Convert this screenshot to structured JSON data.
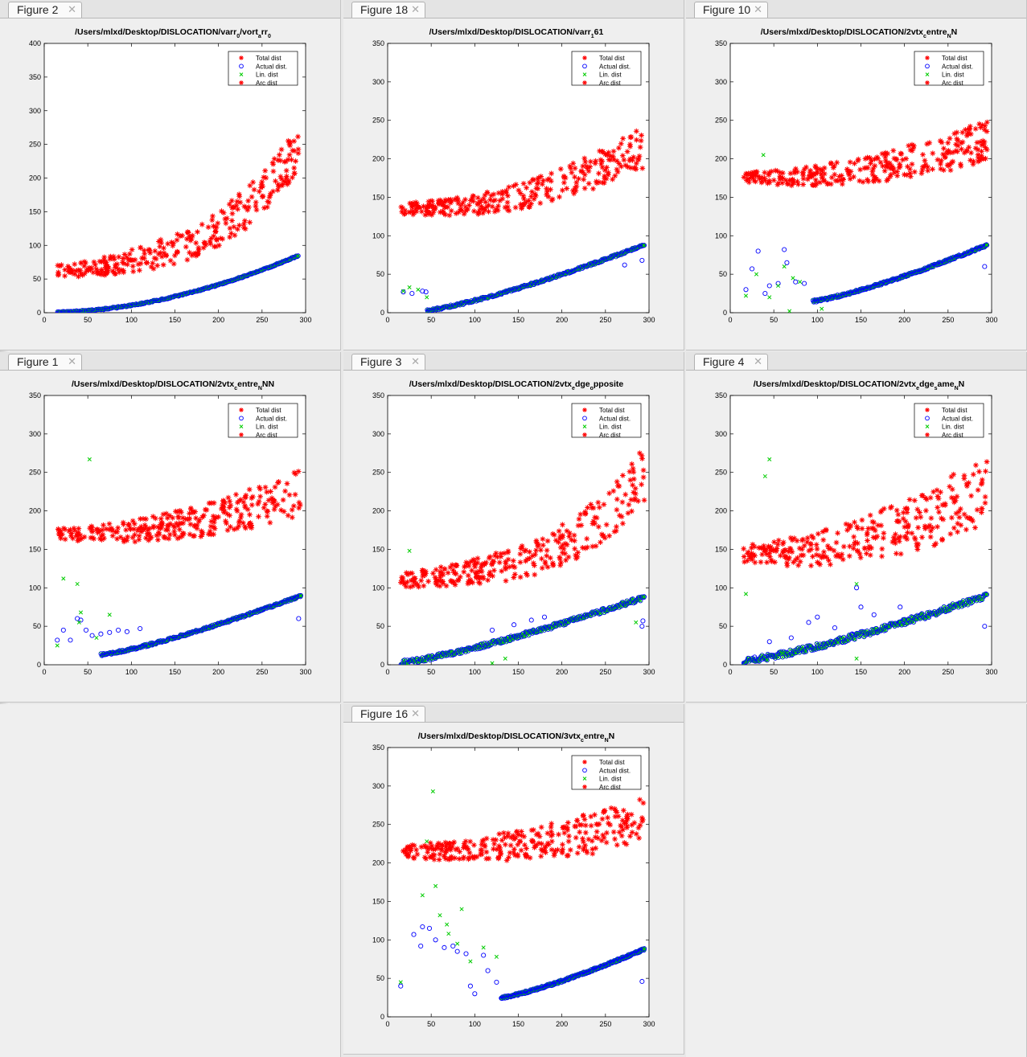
{
  "colors": {
    "total": "#ff0000",
    "actual": "#0000ff",
    "lin": "#00cc00",
    "arc": "#ff0000"
  },
  "legend_entries": [
    "Total dist",
    "Actual dist.",
    "Lin. dist",
    "Arc dist"
  ],
  "close_icon_glyph": "✕",
  "figures": [
    {
      "tab": "Figure 2",
      "title_parts": [
        "/Users/mlxd/Desktop/DISLOCATION/varr",
        "0",
        "/vort",
        "a",
        "rr",
        "0",
        ""
      ],
      "chart_data": {
        "type": "scatter",
        "xlim": [
          0,
          300
        ],
        "ylim": [
          0,
          400
        ],
        "xticks": [
          0,
          50,
          100,
          150,
          200,
          250,
          300
        ],
        "yticks": [
          0,
          50,
          100,
          150,
          200,
          250,
          300,
          350,
          400
        ],
        "legend": "top-right",
        "total": {
          "mode": "exp",
          "x0": 15,
          "x1": 292,
          "y0": 62,
          "y1": 250,
          "start_level": 0,
          "spread": 45
        },
        "actual": {
          "mode": "exp",
          "x0": 15,
          "x1": 292,
          "y0": 1,
          "y1": 85,
          "start_level": 0,
          "spread": 2
        },
        "lin_outliers": [],
        "actual_outliers": []
      }
    },
    {
      "tab": "Figure 18",
      "title_parts": [
        "/Users/mlxd/Desktop/DISLOCATION/varr",
        "1",
        "61",
        "",
        "",
        "",
        ""
      ],
      "chart_data": {
        "type": "scatter",
        "xlim": [
          0,
          300
        ],
        "ylim": [
          0,
          350
        ],
        "xticks": [
          0,
          50,
          100,
          150,
          200,
          250,
          300
        ],
        "yticks": [
          0,
          50,
          100,
          150,
          200,
          250,
          300,
          350
        ],
        "legend": "top-right",
        "total": {
          "mode": "curve",
          "x0": 15,
          "x1": 295,
          "y0": 130,
          "y1": 215,
          "start_level": 135,
          "spread": 35
        },
        "actual": {
          "mode": "curve",
          "x0": 45,
          "x1": 295,
          "y0": 3,
          "y1": 88,
          "start_level": 0,
          "spread": 3
        },
        "lin_outliers": [
          [
            18,
            28
          ],
          [
            25,
            33
          ],
          [
            35,
            30
          ],
          [
            45,
            20
          ]
        ],
        "actual_outliers": [
          [
            18,
            27
          ],
          [
            28,
            25
          ],
          [
            40,
            28
          ],
          [
            44,
            27
          ],
          [
            272,
            62
          ],
          [
            292,
            68
          ]
        ]
      }
    },
    {
      "tab": "Figure 10",
      "title_parts": [
        "/Users/mlxd/Desktop/DISLOCATION/2vtx",
        "c",
        "entre",
        "N",
        "N",
        "",
        ""
      ],
      "chart_data": {
        "type": "scatter",
        "xlim": [
          0,
          300
        ],
        "ylim": [
          0,
          350
        ],
        "xticks": [
          0,
          50,
          100,
          150,
          200,
          250,
          300
        ],
        "yticks": [
          0,
          50,
          100,
          150,
          200,
          250,
          300,
          350
        ],
        "legend": "top-right",
        "total": {
          "mode": "curve",
          "x0": 15,
          "x1": 295,
          "y0": 170,
          "y1": 225,
          "start_level": 175,
          "spread": 35
        },
        "actual": {
          "mode": "curve",
          "x0": 95,
          "x1": 295,
          "y0": 15,
          "y1": 88,
          "start_level": 0,
          "spread": 3
        },
        "lin_outliers": [
          [
            18,
            22
          ],
          [
            30,
            50
          ],
          [
            38,
            205
          ],
          [
            45,
            20
          ],
          [
            55,
            35
          ],
          [
            62,
            60
          ],
          [
            68,
            2
          ],
          [
            72,
            45
          ],
          [
            80,
            40
          ],
          [
            105,
            5
          ]
        ],
        "actual_outliers": [
          [
            18,
            30
          ],
          [
            25,
            57
          ],
          [
            32,
            80
          ],
          [
            40,
            25
          ],
          [
            45,
            35
          ],
          [
            55,
            38
          ],
          [
            62,
            82
          ],
          [
            65,
            65
          ],
          [
            75,
            40
          ],
          [
            85,
            38
          ],
          [
            292,
            60
          ]
        ]
      }
    },
    {
      "tab": "Figure 1",
      "title_parts": [
        "/Users/mlxd/Desktop/DISLOCATION/2vtx",
        "c",
        "entre",
        "N",
        "NN",
        "",
        ""
      ],
      "chart_data": {
        "type": "scatter",
        "xlim": [
          0,
          300
        ],
        "ylim": [
          0,
          350
        ],
        "xticks": [
          0,
          50,
          100,
          150,
          200,
          250,
          300
        ],
        "yticks": [
          0,
          50,
          100,
          150,
          200,
          250,
          300,
          350
        ],
        "legend": "top-right",
        "total": {
          "mode": "curve",
          "x0": 15,
          "x1": 295,
          "y0": 165,
          "y1": 225,
          "start_level": 170,
          "spread": 38
        },
        "actual": {
          "mode": "curve",
          "x0": 65,
          "x1": 295,
          "y0": 13,
          "y1": 90,
          "start_level": 0,
          "spread": 3
        },
        "lin_outliers": [
          [
            15,
            25
          ],
          [
            22,
            112
          ],
          [
            38,
            105
          ],
          [
            40,
            55
          ],
          [
            42,
            68
          ],
          [
            52,
            267
          ],
          [
            60,
            35
          ],
          [
            75,
            65
          ]
        ],
        "actual_outliers": [
          [
            15,
            32
          ],
          [
            22,
            45
          ],
          [
            30,
            32
          ],
          [
            38,
            60
          ],
          [
            42,
            58
          ],
          [
            48,
            45
          ],
          [
            55,
            38
          ],
          [
            65,
            40
          ],
          [
            75,
            42
          ],
          [
            85,
            45
          ],
          [
            95,
            43
          ],
          [
            110,
            47
          ],
          [
            292,
            60
          ]
        ]
      }
    },
    {
      "tab": "Figure 3",
      "title_parts": [
        "/Users/mlxd/Desktop/DISLOCATION/2vtx",
        "e",
        "dge",
        "o",
        "pposite",
        "",
        ""
      ],
      "chart_data": {
        "type": "scatter",
        "xlim": [
          0,
          300
        ],
        "ylim": [
          0,
          350
        ],
        "xticks": [
          0,
          50,
          100,
          150,
          200,
          250,
          300
        ],
        "yticks": [
          0,
          50,
          100,
          150,
          200,
          250,
          300,
          350
        ],
        "legend": "top-right",
        "total": {
          "mode": "exp",
          "x0": 15,
          "x1": 295,
          "y0": 110,
          "y1": 250,
          "start_level": 0,
          "spread": 45
        },
        "actual": {
          "mode": "curve",
          "x0": 15,
          "x1": 295,
          "y0": 3,
          "y1": 88,
          "start_level": 0,
          "spread": 6
        },
        "lin_outliers": [
          [
            25,
            148
          ],
          [
            120,
            2
          ],
          [
            135,
            8
          ],
          [
            285,
            55
          ]
        ],
        "actual_outliers": [
          [
            120,
            45
          ],
          [
            145,
            52
          ],
          [
            165,
            58
          ],
          [
            180,
            62
          ],
          [
            292,
            50
          ],
          [
            293,
            57
          ]
        ]
      }
    },
    {
      "tab": "Figure 4",
      "title_parts": [
        "/Users/mlxd/Desktop/DISLOCATION/2vtx",
        "e",
        "dge",
        "s",
        "ame",
        "N",
        "N"
      ],
      "chart_data": {
        "type": "scatter",
        "xlim": [
          0,
          300
        ],
        "ylim": [
          0,
          350
        ],
        "xticks": [
          0,
          50,
          100,
          150,
          200,
          250,
          300
        ],
        "yticks": [
          0,
          50,
          100,
          150,
          200,
          250,
          300,
          350
        ],
        "legend": "top-right",
        "total": {
          "mode": "curve",
          "x0": 15,
          "x1": 295,
          "y0": 140,
          "y1": 230,
          "start_level": 145,
          "spread": 60
        },
        "actual": {
          "mode": "curve",
          "x0": 15,
          "x1": 295,
          "y0": 5,
          "y1": 90,
          "start_level": 0,
          "spread": 8
        },
        "lin_outliers": [
          [
            18,
            92
          ],
          [
            40,
            245
          ],
          [
            45,
            267
          ],
          [
            60,
            15
          ],
          [
            145,
            8
          ],
          [
            145,
            105
          ]
        ],
        "actual_outliers": [
          [
            28,
            10
          ],
          [
            45,
            30
          ],
          [
            70,
            35
          ],
          [
            90,
            55
          ],
          [
            100,
            62
          ],
          [
            120,
            48
          ],
          [
            140,
            40
          ],
          [
            145,
            100
          ],
          [
            150,
            75
          ],
          [
            165,
            65
          ],
          [
            195,
            75
          ],
          [
            292,
            50
          ]
        ]
      }
    },
    {
      "tab": "Figure 16",
      "title_parts": [
        "/Users/mlxd/Desktop/DISLOCATION/3vtx",
        "c",
        "entre",
        "N",
        "N",
        "",
        ""
      ],
      "chart_data": {
        "type": "scatter",
        "xlim": [
          0,
          300
        ],
        "ylim": [
          0,
          350
        ],
        "xticks": [
          0,
          50,
          100,
          150,
          200,
          250,
          300
        ],
        "yticks": [
          0,
          50,
          100,
          150,
          200,
          250,
          300,
          350
        ],
        "legend": "top-right",
        "total": {
          "mode": "curve",
          "x0": 15,
          "x1": 295,
          "y0": 210,
          "y1": 255,
          "start_level": 215,
          "spread": 40
        },
        "actual": {
          "mode": "curve",
          "x0": 130,
          "x1": 295,
          "y0": 25,
          "y1": 88,
          "start_level": 0,
          "spread": 3
        },
        "lin_outliers": [
          [
            15,
            45
          ],
          [
            40,
            158
          ],
          [
            45,
            228
          ],
          [
            52,
            293
          ],
          [
            55,
            170
          ],
          [
            60,
            132
          ],
          [
            68,
            120
          ],
          [
            70,
            108
          ],
          [
            80,
            95
          ],
          [
            85,
            140
          ],
          [
            95,
            72
          ],
          [
            110,
            90
          ],
          [
            125,
            78
          ]
        ],
        "actual_outliers": [
          [
            15,
            40
          ],
          [
            30,
            107
          ],
          [
            38,
            92
          ],
          [
            40,
            117
          ],
          [
            48,
            115
          ],
          [
            55,
            100
          ],
          [
            65,
            90
          ],
          [
            75,
            92
          ],
          [
            80,
            85
          ],
          [
            90,
            82
          ],
          [
            95,
            40
          ],
          [
            100,
            30
          ],
          [
            110,
            80
          ],
          [
            115,
            60
          ],
          [
            125,
            45
          ],
          [
            292,
            46
          ]
        ]
      }
    }
  ]
}
